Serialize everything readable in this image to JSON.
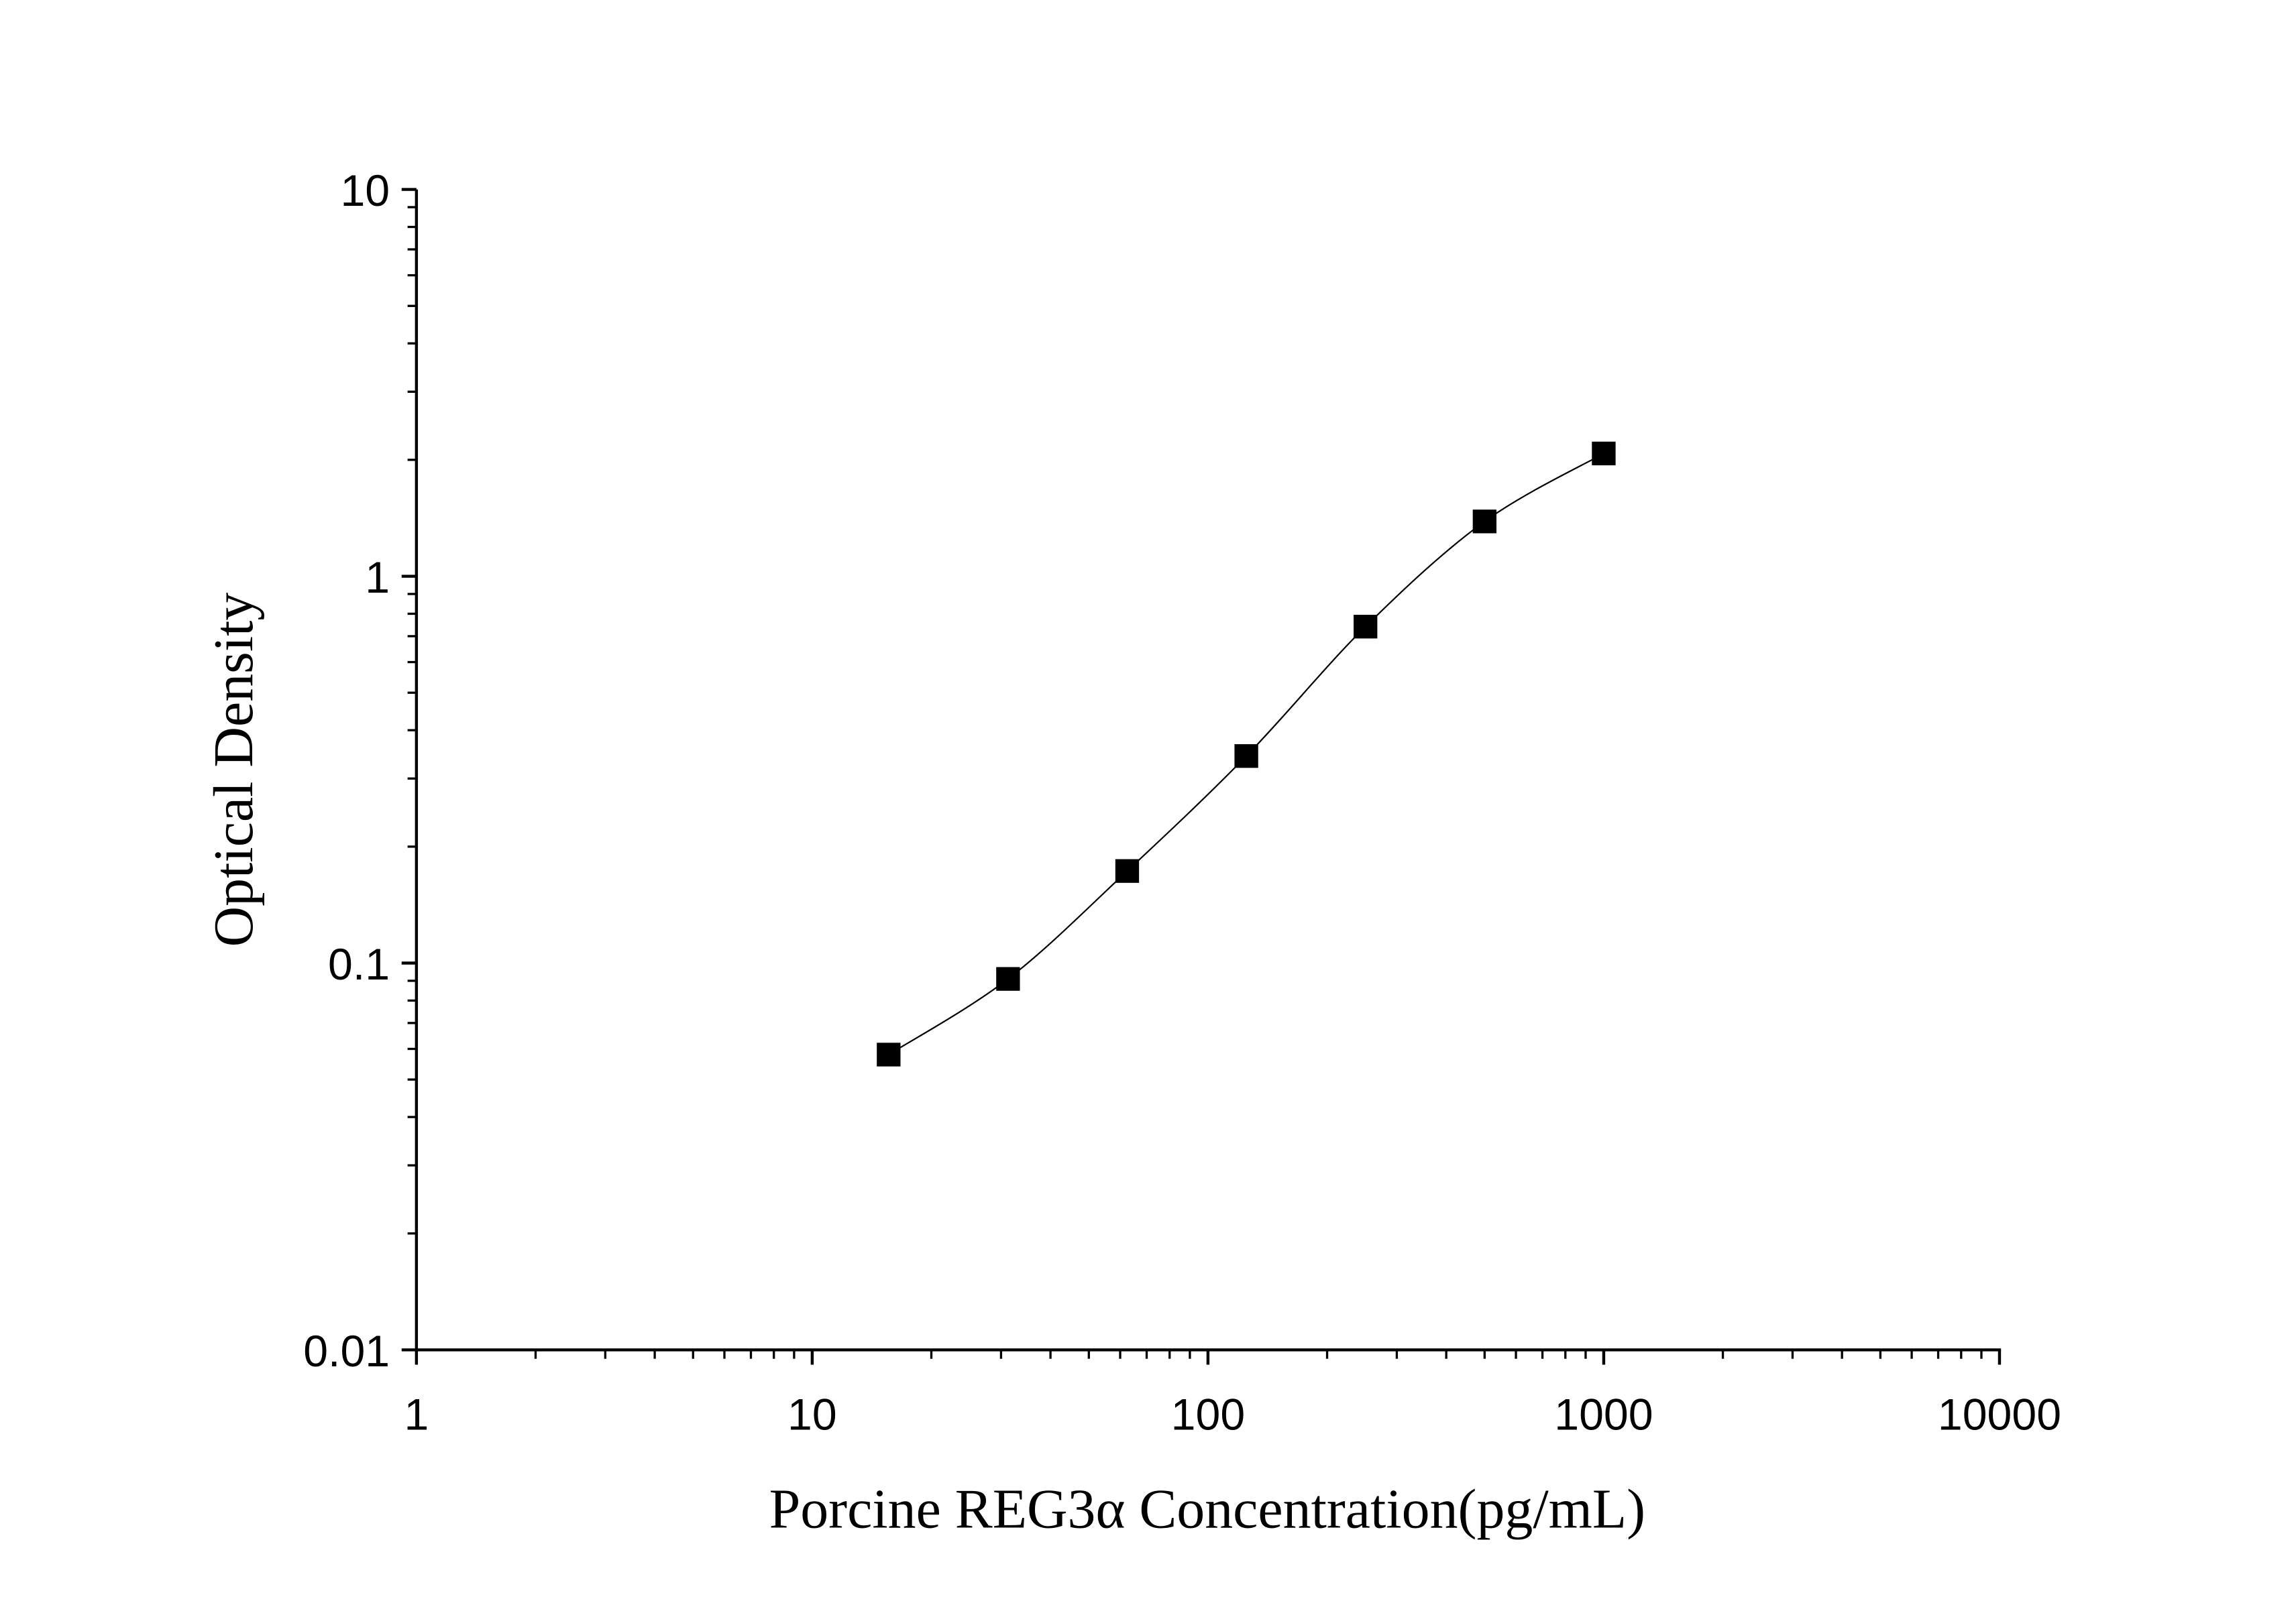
{
  "chart_data": {
    "type": "scatter",
    "xlabel": "Porcine REG3α Concentration(pg/mL)",
    "ylabel": "Optical Density",
    "x_scale": "log",
    "y_scale": "log",
    "xlim": [
      1,
      10000
    ],
    "ylim": [
      0.01,
      10
    ],
    "x_ticks": [
      "1",
      "10",
      "100",
      "1000",
      "10000"
    ],
    "y_ticks": [
      "0.01",
      "0.1",
      "1",
      "10"
    ],
    "grid": false,
    "fit_curve": true,
    "marker": "square",
    "color": "#000000",
    "series": [
      {
        "x": [
          15.6,
          31.25,
          62.5,
          125,
          250,
          500,
          1000
        ],
        "y": [
          0.058,
          0.091,
          0.173,
          0.343,
          0.741,
          1.386,
          2.077
        ]
      }
    ]
  }
}
